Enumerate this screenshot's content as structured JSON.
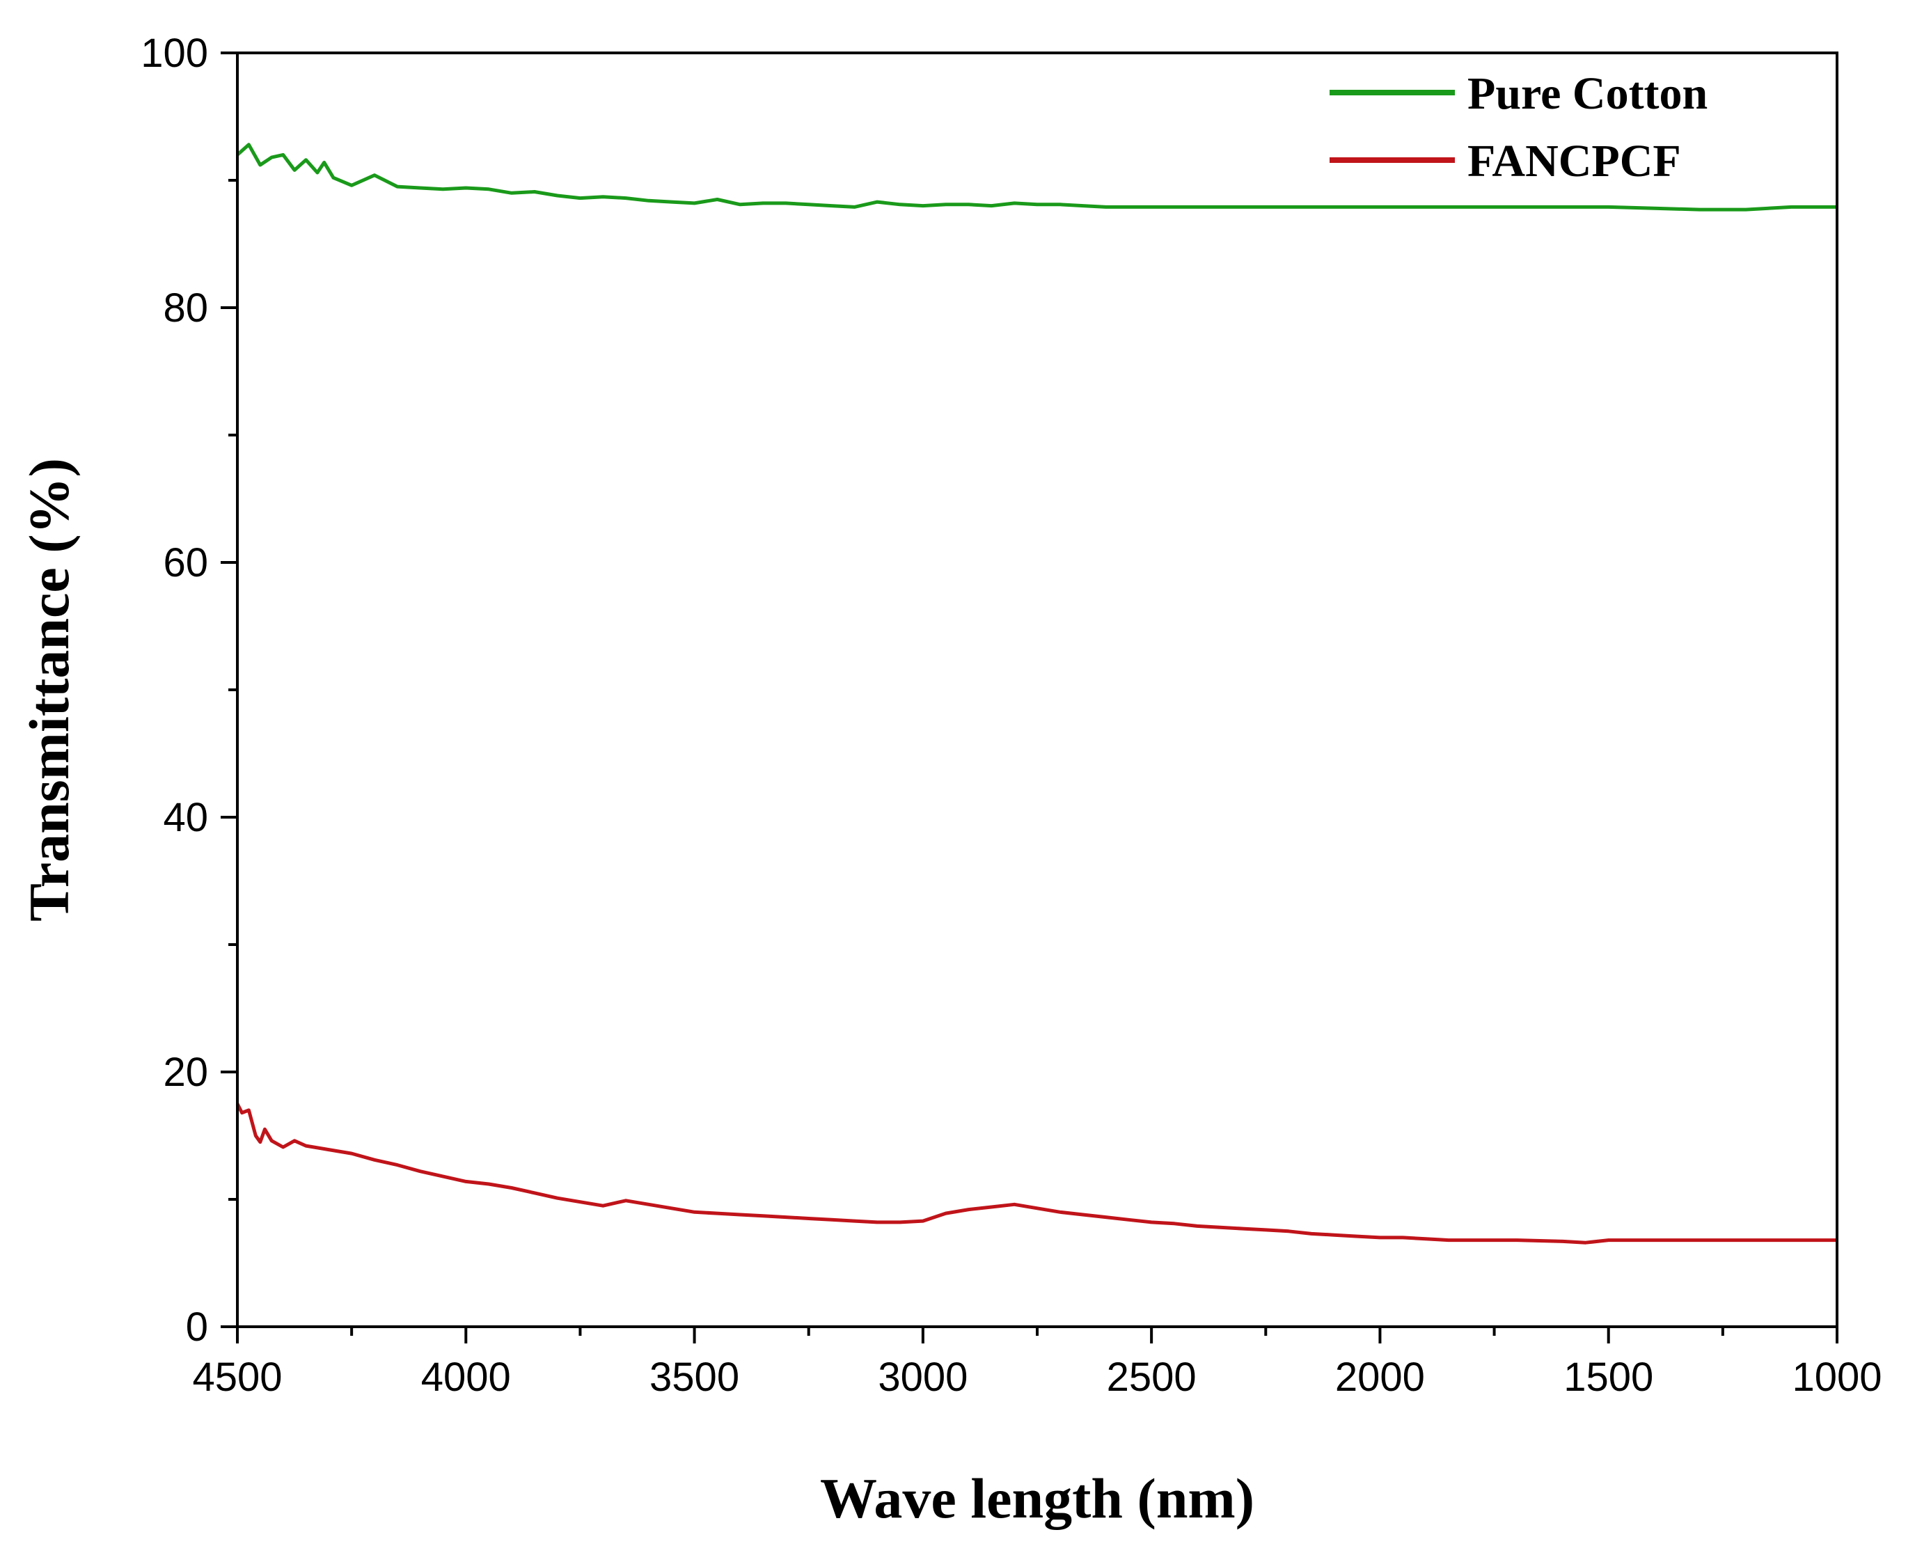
{
  "chart_data": {
    "type": "line",
    "title": "",
    "xlabel": "Wave length (nm)",
    "ylabel": "Transmittance (%)",
    "xlim": [
      4500,
      1000
    ],
    "ylim": [
      0,
      100
    ],
    "x_ticks": [
      4500,
      4000,
      3500,
      3000,
      2500,
      2000,
      1500,
      1000
    ],
    "x_tick_labels": [
      "4500",
      "4000",
      "3500",
      "3000",
      "2500",
      "2000",
      "1500",
      "1000"
    ],
    "y_ticks": [
      0,
      20,
      40,
      60,
      80,
      100
    ],
    "y_tick_labels": [
      "0",
      "20",
      "40",
      "60",
      "80",
      "100"
    ],
    "grid": false,
    "legend_position": "top-right",
    "series": [
      {
        "name": "Pure Cotton",
        "color": "#1a9a1a",
        "points": [
          [
            4500,
            92.0
          ],
          [
            4475,
            92.8
          ],
          [
            4450,
            91.2
          ],
          [
            4425,
            91.8
          ],
          [
            4400,
            92.0
          ],
          [
            4375,
            90.8
          ],
          [
            4350,
            91.6
          ],
          [
            4325,
            90.6
          ],
          [
            4310,
            91.4
          ],
          [
            4290,
            90.2
          ],
          [
            4250,
            89.6
          ],
          [
            4200,
            90.4
          ],
          [
            4150,
            89.5
          ],
          [
            4100,
            89.4
          ],
          [
            4050,
            89.3
          ],
          [
            4000,
            89.4
          ],
          [
            3950,
            89.3
          ],
          [
            3900,
            89.0
          ],
          [
            3850,
            89.1
          ],
          [
            3800,
            88.8
          ],
          [
            3750,
            88.6
          ],
          [
            3700,
            88.7
          ],
          [
            3650,
            88.6
          ],
          [
            3600,
            88.4
          ],
          [
            3550,
            88.3
          ],
          [
            3500,
            88.2
          ],
          [
            3450,
            88.5
          ],
          [
            3400,
            88.1
          ],
          [
            3350,
            88.2
          ],
          [
            3300,
            88.2
          ],
          [
            3250,
            88.1
          ],
          [
            3200,
            88.0
          ],
          [
            3150,
            87.9
          ],
          [
            3100,
            88.3
          ],
          [
            3050,
            88.1
          ],
          [
            3000,
            88.0
          ],
          [
            2950,
            88.1
          ],
          [
            2900,
            88.1
          ],
          [
            2850,
            88.0
          ],
          [
            2800,
            88.2
          ],
          [
            2750,
            88.1
          ],
          [
            2700,
            88.1
          ],
          [
            2650,
            88.0
          ],
          [
            2600,
            87.9
          ],
          [
            2500,
            87.9
          ],
          [
            2400,
            87.9
          ],
          [
            2300,
            87.9
          ],
          [
            2200,
            87.9
          ],
          [
            2100,
            87.9
          ],
          [
            2000,
            87.9
          ],
          [
            1900,
            87.9
          ],
          [
            1800,
            87.9
          ],
          [
            1700,
            87.9
          ],
          [
            1600,
            87.9
          ],
          [
            1500,
            87.9
          ],
          [
            1400,
            87.8
          ],
          [
            1300,
            87.7
          ],
          [
            1200,
            87.7
          ],
          [
            1100,
            87.9
          ],
          [
            1000,
            87.9
          ]
        ]
      },
      {
        "name": "FANCPCF",
        "color": "#c0141a",
        "points": [
          [
            4500,
            17.5
          ],
          [
            4490,
            16.8
          ],
          [
            4475,
            17.0
          ],
          [
            4460,
            15.0
          ],
          [
            4450,
            14.5
          ],
          [
            4440,
            15.5
          ],
          [
            4425,
            14.6
          ],
          [
            4400,
            14.1
          ],
          [
            4375,
            14.6
          ],
          [
            4350,
            14.2
          ],
          [
            4300,
            13.9
          ],
          [
            4250,
            13.6
          ],
          [
            4200,
            13.1
          ],
          [
            4150,
            12.7
          ],
          [
            4100,
            12.2
          ],
          [
            4050,
            11.8
          ],
          [
            4000,
            11.4
          ],
          [
            3950,
            11.2
          ],
          [
            3900,
            10.9
          ],
          [
            3850,
            10.5
          ],
          [
            3800,
            10.1
          ],
          [
            3750,
            9.8
          ],
          [
            3700,
            9.5
          ],
          [
            3650,
            9.9
          ],
          [
            3600,
            9.6
          ],
          [
            3550,
            9.3
          ],
          [
            3500,
            9.0
          ],
          [
            3450,
            8.9
          ],
          [
            3400,
            8.8
          ],
          [
            3350,
            8.7
          ],
          [
            3300,
            8.6
          ],
          [
            3250,
            8.5
          ],
          [
            3200,
            8.4
          ],
          [
            3150,
            8.3
          ],
          [
            3100,
            8.2
          ],
          [
            3050,
            8.2
          ],
          [
            3000,
            8.3
          ],
          [
            2950,
            8.9
          ],
          [
            2900,
            9.2
          ],
          [
            2850,
            9.4
          ],
          [
            2800,
            9.6
          ],
          [
            2750,
            9.3
          ],
          [
            2700,
            9.0
          ],
          [
            2650,
            8.8
          ],
          [
            2600,
            8.6
          ],
          [
            2550,
            8.4
          ],
          [
            2500,
            8.2
          ],
          [
            2450,
            8.1
          ],
          [
            2400,
            7.9
          ],
          [
            2350,
            7.8
          ],
          [
            2300,
            7.7
          ],
          [
            2250,
            7.6
          ],
          [
            2200,
            7.5
          ],
          [
            2150,
            7.3
          ],
          [
            2100,
            7.2
          ],
          [
            2050,
            7.1
          ],
          [
            2000,
            7.0
          ],
          [
            1950,
            7.0
          ],
          [
            1900,
            6.9
          ],
          [
            1850,
            6.8
          ],
          [
            1800,
            6.8
          ],
          [
            1700,
            6.8
          ],
          [
            1600,
            6.7
          ],
          [
            1550,
            6.6
          ],
          [
            1500,
            6.8
          ],
          [
            1400,
            6.8
          ],
          [
            1300,
            6.8
          ],
          [
            1200,
            6.8
          ],
          [
            1100,
            6.8
          ],
          [
            1000,
            6.8
          ]
        ]
      }
    ]
  }
}
